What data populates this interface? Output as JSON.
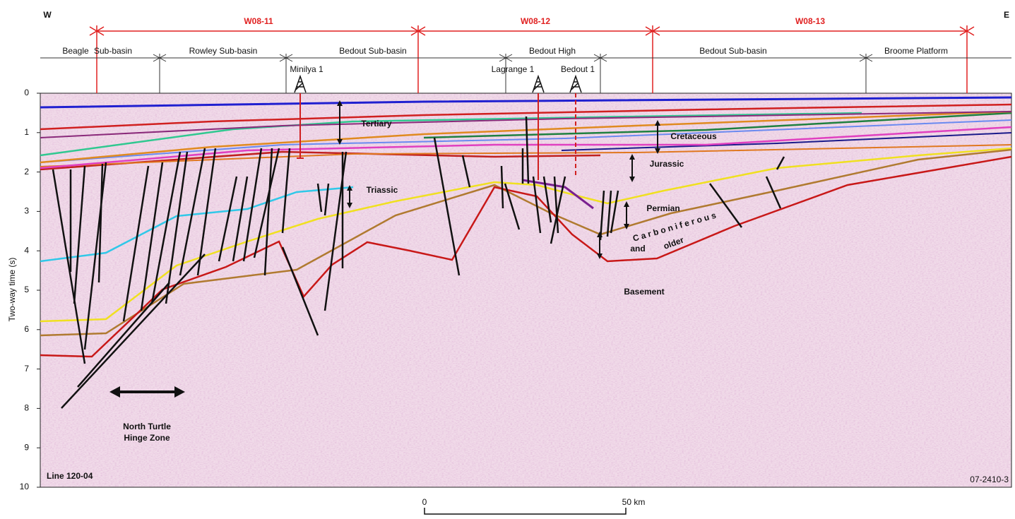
{
  "header": {
    "west": "W",
    "east": "E"
  },
  "surveys": [
    "W08-11",
    "W08-12",
    "W08-13"
  ],
  "provinces": [
    "Beagle",
    "Sub-basin",
    "Rowley Sub-basin",
    "Bedout Sub-basin",
    "Bedout High",
    "Bedout Sub-basin",
    "Broome Platform"
  ],
  "wells": [
    "Minilya 1",
    "Lagrange 1",
    "Bedout 1"
  ],
  "y_axis": {
    "label": "Two-way time (s)",
    "ticks": [
      0,
      1,
      2,
      3,
      4,
      5,
      6,
      7,
      8,
      9,
      10
    ]
  },
  "units": [
    "Tertiary",
    "Cretaceous",
    "Jurassic",
    "Triassic",
    "Permian",
    "C a r b o n i f e r o u s",
    "and",
    "older",
    "Basement"
  ],
  "annotations": [
    "North Turtle",
    "Hinge Zone"
  ],
  "line_label": "Line 120-04",
  "figure_id": "07-2410-3",
  "scale": {
    "start": "0",
    "end": "50 km"
  }
}
